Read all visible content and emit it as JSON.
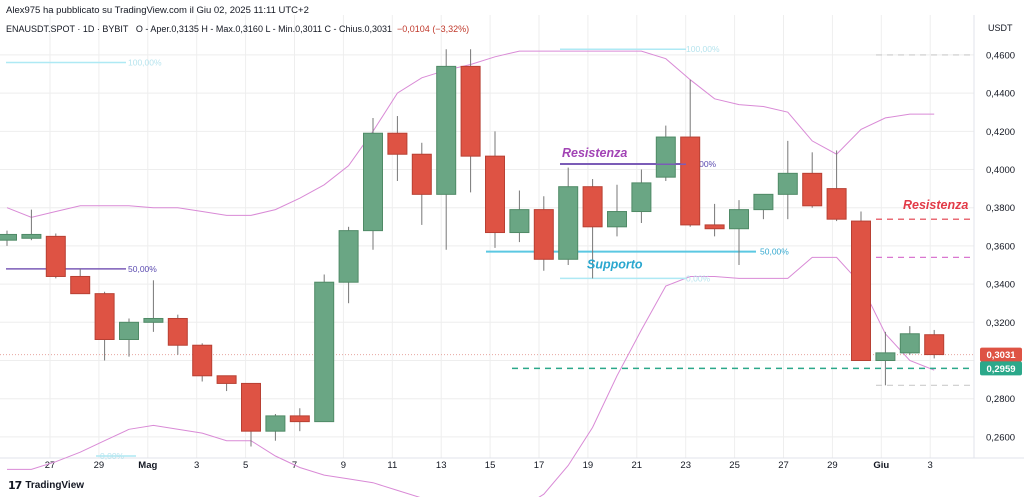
{
  "header": {
    "publisher_line": "Alex975 ha pubblicato su TradingView.com il Giu 02, 2025 11:11 UTC+2",
    "symbol": "ENAUSDT.SPOT · 1D · BYBIT",
    "ohlc": "O - Aper.0,3135  H - Max.0,3160  L - Min.0,3011  C - Chius.0,3031",
    "change": "−0,0104 (−3,32%)"
  },
  "footer": {
    "brand": "TradingView",
    "logo": "17"
  },
  "colors": {
    "up": "#6aa684",
    "down": "#de5344",
    "bb": "#d98ad6",
    "fib_light": "#aee9f4",
    "fib_mid": "#5bc8e2",
    "fib_purple": "#7b5cb7",
    "res_purple": "#a244b5",
    "res_red": "#e23b48",
    "teal": "#2ba88a",
    "grey_dash": "#cbcbcb",
    "grid": "#eeeeee"
  },
  "chart_data": {
    "type": "candlestick",
    "y_currency": "USDT",
    "ylim": [
      0.25,
      0.472
    ],
    "y_ticks": [
      "0,4600",
      "0,4400",
      "0,4200",
      "0,4000",
      "0,3800",
      "0,3600",
      "0,3400",
      "0,3200",
      "0,3000",
      "0,2800",
      "0,2600"
    ],
    "x_ticks": [
      "27",
      "29",
      "Mag",
      "3",
      "5",
      "7",
      "9",
      "11",
      "13",
      "15",
      "17",
      "19",
      "21",
      "23",
      "25",
      "27",
      "29",
      "Giu",
      "3"
    ],
    "candles": [
      {
        "o": 0.363,
        "h": 0.368,
        "l": 0.36,
        "c": 0.366
      },
      {
        "o": 0.364,
        "h": 0.379,
        "l": 0.363,
        "c": 0.366
      },
      {
        "o": 0.365,
        "h": 0.3665,
        "l": 0.343,
        "c": 0.344
      },
      {
        "o": 0.344,
        "h": 0.348,
        "l": 0.336,
        "c": 0.335
      },
      {
        "o": 0.335,
        "h": 0.336,
        "l": 0.3,
        "c": 0.311
      },
      {
        "o": 0.311,
        "h": 0.322,
        "l": 0.302,
        "c": 0.32
      },
      {
        "o": 0.32,
        "h": 0.342,
        "l": 0.315,
        "c": 0.322
      },
      {
        "o": 0.322,
        "h": 0.324,
        "l": 0.303,
        "c": 0.308
      },
      {
        "o": 0.308,
        "h": 0.309,
        "l": 0.289,
        "c": 0.292
      },
      {
        "o": 0.292,
        "h": 0.292,
        "l": 0.284,
        "c": 0.288
      },
      {
        "o": 0.288,
        "h": 0.288,
        "l": 0.255,
        "c": 0.263
      },
      {
        "o": 0.263,
        "h": 0.272,
        "l": 0.258,
        "c": 0.271
      },
      {
        "o": 0.271,
        "h": 0.275,
        "l": 0.263,
        "c": 0.268
      },
      {
        "o": 0.268,
        "h": 0.345,
        "l": 0.268,
        "c": 0.341
      },
      {
        "o": 0.341,
        "h": 0.37,
        "l": 0.33,
        "c": 0.368
      },
      {
        "o": 0.368,
        "h": 0.427,
        "l": 0.358,
        "c": 0.419
      },
      {
        "o": 0.419,
        "h": 0.428,
        "l": 0.394,
        "c": 0.408
      },
      {
        "o": 0.408,
        "h": 0.414,
        "l": 0.371,
        "c": 0.387
      },
      {
        "o": 0.387,
        "h": 0.463,
        "l": 0.358,
        "c": 0.454
      },
      {
        "o": 0.454,
        "h": 0.463,
        "l": 0.388,
        "c": 0.407
      },
      {
        "o": 0.407,
        "h": 0.42,
        "l": 0.359,
        "c": 0.367
      },
      {
        "o": 0.367,
        "h": 0.389,
        "l": 0.362,
        "c": 0.379
      },
      {
        "o": 0.379,
        "h": 0.386,
        "l": 0.347,
        "c": 0.353
      },
      {
        "o": 0.353,
        "h": 0.401,
        "l": 0.35,
        "c": 0.391
      },
      {
        "o": 0.391,
        "h": 0.395,
        "l": 0.343,
        "c": 0.37
      },
      {
        "o": 0.37,
        "h": 0.392,
        "l": 0.365,
        "c": 0.378
      },
      {
        "o": 0.378,
        "h": 0.4,
        "l": 0.372,
        "c": 0.393
      },
      {
        "o": 0.396,
        "h": 0.423,
        "l": 0.394,
        "c": 0.417
      },
      {
        "o": 0.417,
        "h": 0.447,
        "l": 0.37,
        "c": 0.371
      },
      {
        "o": 0.371,
        "h": 0.382,
        "l": 0.365,
        "c": 0.369
      },
      {
        "o": 0.369,
        "h": 0.384,
        "l": 0.35,
        "c": 0.379
      },
      {
        "o": 0.379,
        "h": 0.386,
        "l": 0.374,
        "c": 0.387
      },
      {
        "o": 0.387,
        "h": 0.415,
        "l": 0.374,
        "c": 0.398
      },
      {
        "o": 0.398,
        "h": 0.409,
        "l": 0.38,
        "c": 0.381
      },
      {
        "o": 0.39,
        "h": 0.41,
        "l": 0.373,
        "c": 0.374
      },
      {
        "o": 0.373,
        "h": 0.378,
        "l": 0.3,
        "c": 0.3
      },
      {
        "o": 0.3,
        "h": 0.315,
        "l": 0.287,
        "c": 0.304
      },
      {
        "o": 0.304,
        "h": 0.318,
        "l": 0.303,
        "c": 0.314
      },
      {
        "o": 0.3135,
        "h": 0.316,
        "l": 0.3011,
        "c": 0.3031
      }
    ],
    "bb_upper": [
      0.38,
      0.375,
      0.378,
      0.381,
      0.381,
      0.381,
      0.38,
      0.38,
      0.378,
      0.376,
      0.376,
      0.379,
      0.385,
      0.392,
      0.402,
      0.42,
      0.44,
      0.448,
      0.452,
      0.455,
      0.459,
      0.462,
      0.462,
      0.462,
      0.462,
      0.462,
      0.462,
      0.458,
      0.447,
      0.437,
      0.434,
      0.433,
      0.43,
      0.415,
      0.408,
      0.421,
      0.427,
      0.429,
      0.429
    ],
    "bb_lower": [
      0.243,
      0.243,
      0.247,
      0.252,
      0.258,
      0.264,
      0.266,
      0.264,
      0.262,
      0.258,
      0.258,
      0.25,
      0.244,
      0.24,
      0.238,
      0.236,
      0.232,
      0.228,
      0.224,
      0.221,
      0.218,
      0.222,
      0.23,
      0.245,
      0.265,
      0.292,
      0.316,
      0.339,
      0.344,
      0.344,
      0.343,
      0.343,
      0.343,
      0.354,
      0.354,
      0.34,
      0.314,
      0.3,
      0.295
    ],
    "fib_levels": [
      {
        "label": "100,00%",
        "value": 0.456,
        "color": "#aee9f4"
      },
      {
        "label": "50,00%",
        "value": 0.348,
        "color": "#7b5cb7"
      },
      {
        "label": "100,00%",
        "value": 0.463,
        "color": "#aee9f4"
      },
      {
        "label": "0,00%",
        "value": 0.403,
        "color": "#7b5cb7"
      },
      {
        "label": "50,00%",
        "value": 0.357,
        "color": "#5bc8e2"
      },
      {
        "label": "0,00%",
        "value": 0.343,
        "color": "#aee9f4"
      },
      {
        "label": "0,00%",
        "value": 0.25,
        "color": "#aee9f4"
      }
    ],
    "annotations": [
      {
        "text": "Resistenza",
        "color": "#a244b5",
        "price": 0.403
      },
      {
        "text": "Supporto",
        "color": "#2aa7cf",
        "price": 0.357
      },
      {
        "text": "Resistenza",
        "color": "#e23b48",
        "price": 0.374
      }
    ],
    "current_price": {
      "label": "0,3031",
      "value": 0.3031
    },
    "support_line": {
      "label": "0,2959",
      "value": 0.2959
    }
  }
}
